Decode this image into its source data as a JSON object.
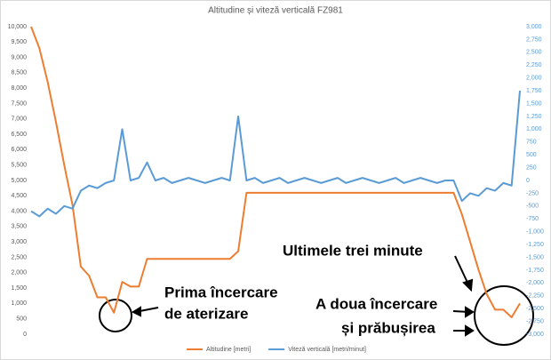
{
  "chart_data": {
    "type": "line",
    "title": "Altitudine și viteză verticală FZ981",
    "series": [
      {
        "name": "Altitudine [metri]",
        "color": "#ed7d31",
        "values": [
          10000,
          9300,
          8200,
          6900,
          5500,
          4200,
          2200,
          1900,
          1200,
          1200,
          700,
          1700,
          1550,
          1550,
          2450,
          2450,
          2450,
          2450,
          2450,
          2450,
          2450,
          2450,
          2450,
          2450,
          2450,
          2700,
          4600,
          4600,
          4600,
          4600,
          4600,
          4600,
          4600,
          4600,
          4600,
          4600,
          4600,
          4600,
          4600,
          4600,
          4600,
          4600,
          4600,
          4600,
          4600,
          4600,
          4600,
          4600,
          4600,
          4600,
          4600,
          4600,
          3900,
          3000,
          2100,
          1300,
          800,
          800,
          550,
          1000
        ]
      },
      {
        "name": "Viteză verticală [metri/minut]",
        "color": "#5b9bd5",
        "axis": "y2",
        "values": [
          -600,
          -700,
          -550,
          -650,
          -500,
          -550,
          -200,
          -100,
          -150,
          -50,
          0,
          1000,
          0,
          50,
          350,
          0,
          50,
          -50,
          0,
          50,
          0,
          -50,
          0,
          50,
          0,
          1250,
          0,
          50,
          -50,
          0,
          50,
          -50,
          0,
          50,
          0,
          -50,
          0,
          50,
          -50,
          0,
          50,
          0,
          -50,
          0,
          50,
          -50,
          0,
          50,
          0,
          -50,
          0,
          0,
          -400,
          -250,
          -300,
          -150,
          -200,
          -50,
          -100,
          1750
        ]
      }
    ],
    "ylim": [
      0,
      10000
    ],
    "yticks": [
      {
        "value": 10000,
        "label": "10,000"
      },
      {
        "value": 9500,
        "label": "9,500"
      },
      {
        "value": 9000,
        "label": "9,000"
      },
      {
        "value": 8500,
        "label": "8,500"
      },
      {
        "value": 8000,
        "label": "8,000"
      },
      {
        "value": 7500,
        "label": "7,500"
      },
      {
        "value": 7000,
        "label": "7,000"
      },
      {
        "value": 6500,
        "label": "6,500"
      },
      {
        "value": 6000,
        "label": "6,000"
      },
      {
        "value": 5500,
        "label": "5,500"
      },
      {
        "value": 5000,
        "label": "5,000"
      },
      {
        "value": 4500,
        "label": "4,500"
      },
      {
        "value": 4000,
        "label": "4,000"
      },
      {
        "value": 3500,
        "label": "3,500"
      },
      {
        "value": 3000,
        "label": "3,000"
      },
      {
        "value": 2500,
        "label": "2,500"
      },
      {
        "value": 2000,
        "label": "2,000"
      },
      {
        "value": 1500,
        "label": "1,500"
      },
      {
        "value": 1000,
        "label": "1,000"
      },
      500,
      0
    ],
    "y2lim": [
      -3000,
      3000
    ],
    "y2ticks": [
      {
        "value": 3000,
        "label": "3,000"
      },
      {
        "value": 2750,
        "label": "2,750"
      },
      {
        "value": 2500,
        "label": "2,500"
      },
      {
        "value": 2250,
        "label": "2,250"
      },
      {
        "value": 2000,
        "label": "2,000"
      },
      {
        "value": 1750,
        "label": "1,750"
      },
      {
        "value": 1500,
        "label": "1,500"
      },
      {
        "value": 1250,
        "label": "1,250"
      },
      {
        "value": 1000,
        "label": "1,000"
      },
      750,
      500,
      250,
      0,
      -250,
      -500,
      -750,
      {
        "value": -1000,
        "label": "-1,000"
      },
      {
        "value": -1250,
        "label": "-1,250"
      },
      {
        "value": -1500,
        "label": "-1,500"
      },
      {
        "value": -1750,
        "label": "-1,750"
      },
      {
        "value": -2000,
        "label": "-2,000"
      },
      {
        "value": -2250,
        "label": "-2,250"
      },
      {
        "value": -2500,
        "label": "-2,500"
      },
      {
        "value": -2750,
        "label": "-2,750"
      },
      {
        "value": -3000,
        "label": "-3,000"
      }
    ],
    "annotations": [
      "Prima încercare",
      "de aterizare",
      "Ultimele trei minute",
      "A doua încercare",
      "și prăbușirea"
    ]
  }
}
